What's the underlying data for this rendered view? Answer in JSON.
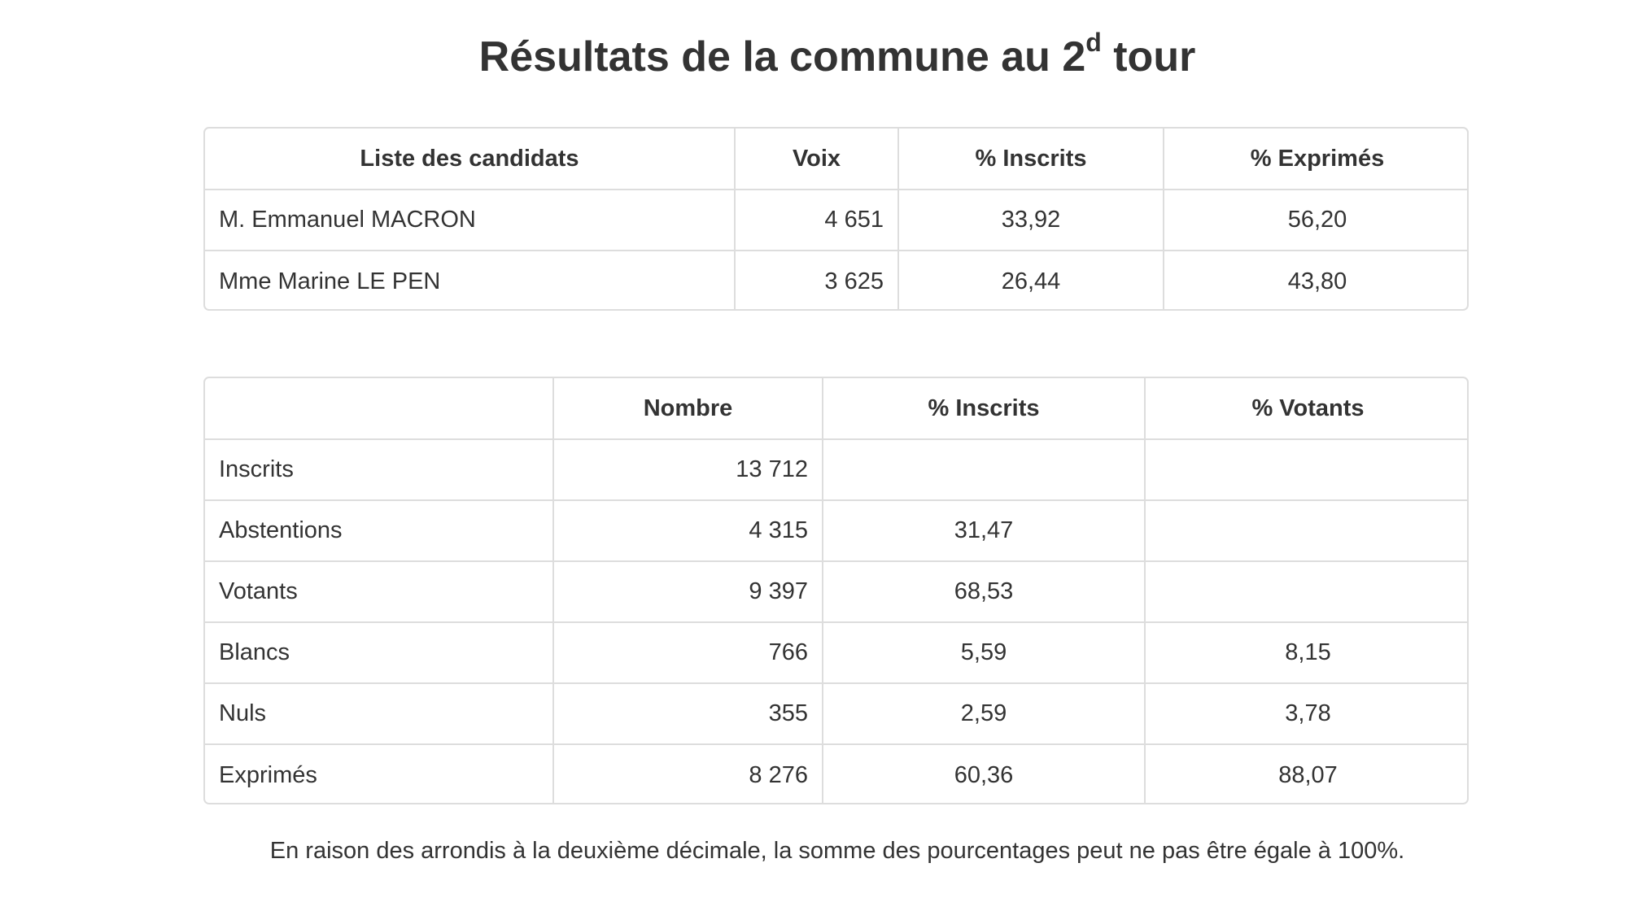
{
  "title": {
    "main": "Résultats de la commune au 2",
    "sup": "d",
    "end": " tour"
  },
  "candidates_table": {
    "headers": [
      "Liste des candidats",
      "Voix",
      "% Inscrits",
      "% Exprimés"
    ],
    "rows": [
      {
        "name": "M. Emmanuel MACRON",
        "voix": "4 651",
        "pct_inscrits": "33,92",
        "pct_exprimes": "56,20"
      },
      {
        "name": "Mme Marine LE PEN",
        "voix": "3 625",
        "pct_inscrits": "26,44",
        "pct_exprimes": "43,80"
      }
    ]
  },
  "summary_table": {
    "headers": [
      "",
      "Nombre",
      "% Inscrits",
      "% Votants"
    ],
    "rows": [
      {
        "label": "Inscrits",
        "nombre": "13 712",
        "pct_inscrits": "",
        "pct_votants": ""
      },
      {
        "label": "Abstentions",
        "nombre": "4 315",
        "pct_inscrits": "31,47",
        "pct_votants": ""
      },
      {
        "label": "Votants",
        "nombre": "9 397",
        "pct_inscrits": "68,53",
        "pct_votants": ""
      },
      {
        "label": "Blancs",
        "nombre": "766",
        "pct_inscrits": "5,59",
        "pct_votants": "8,15"
      },
      {
        "label": "Nuls",
        "nombre": "355",
        "pct_inscrits": "2,59",
        "pct_votants": "3,78"
      },
      {
        "label": "Exprimés",
        "nombre": "8 276",
        "pct_inscrits": "60,36",
        "pct_votants": "88,07"
      }
    ]
  },
  "note": "En raison des arrondis à la deuxième décimale, la somme des pourcentages peut ne pas être égale à 100%."
}
